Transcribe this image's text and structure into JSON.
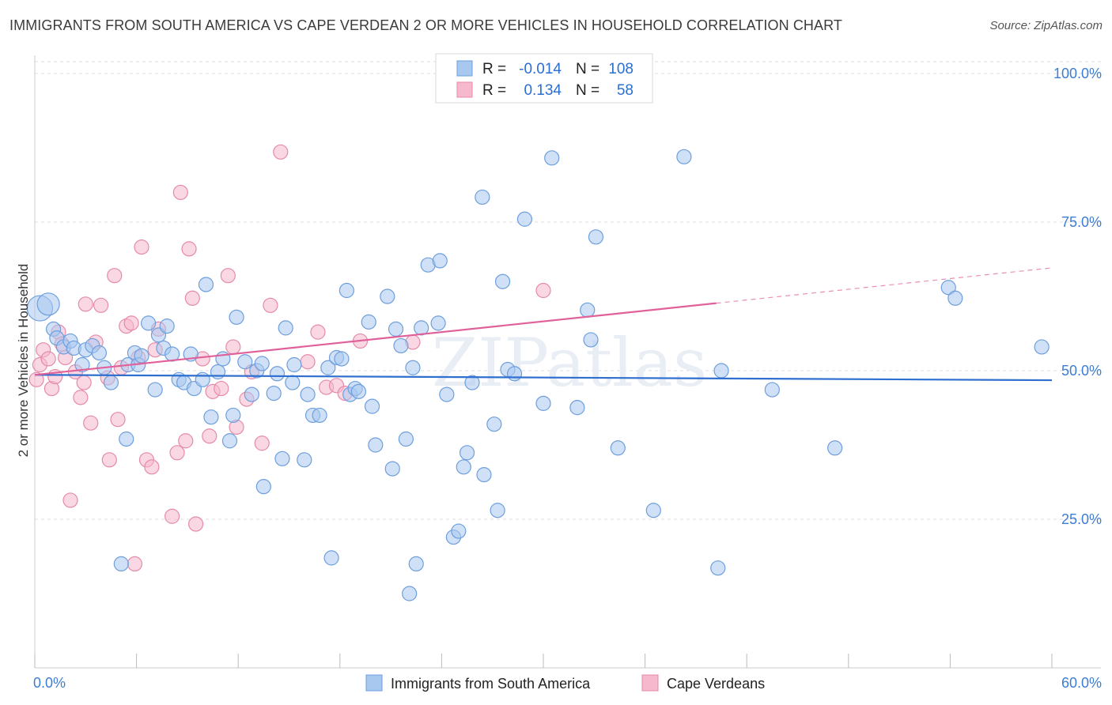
{
  "title": "IMMIGRANTS FROM SOUTH AMERICA VS CAPE VERDEAN 2 OR MORE VEHICLES IN HOUSEHOLD CORRELATION CHART",
  "source": "Source: ZipAtlas.com",
  "watermark": "ZIPatlas",
  "colors": {
    "blue_fill": "#a9c8f0",
    "blue_stroke": "#6d9fdd",
    "blue_line": "#2f6fcf",
    "pink_fill": "#f5b8cc",
    "pink_stroke": "#e68aa9",
    "pink_line": "#e0609a",
    "tick_text": "#3d7dd4",
    "grid": "#dddddd"
  },
  "legend_stats": [
    {
      "r_label": "R =",
      "r_value": "-0.014",
      "n_label": "N =",
      "n_value": "108"
    },
    {
      "r_label": "R =",
      "r_value": "0.134",
      "n_label": "N =",
      "n_value": "58"
    }
  ],
  "chart_data": {
    "type": "scatter",
    "xlabel": "",
    "ylabel": "2 or more Vehicles in Household",
    "xlim": [
      0,
      60
    ],
    "ylim": [
      0,
      102
    ],
    "x_tick_labels": [
      "0.0%",
      "60.0%"
    ],
    "y_ticks": [
      25,
      50,
      75,
      100
    ],
    "y_tick_labels": [
      "25.0%",
      "50.0%",
      "75.0%",
      "100.0%"
    ],
    "grid": true,
    "legend_position": "bottom",
    "series": [
      {
        "name": "Immigrants from South America",
        "color": "blue",
        "trend": {
          "x0": 0,
          "y0": 49.3,
          "x1": 60,
          "y1": 48.4,
          "dashed_from": null
        },
        "points": [
          [
            0.3,
            60.5
          ],
          [
            0.8,
            61.2
          ],
          [
            1.1,
            57.0
          ],
          [
            1.3,
            55.5
          ],
          [
            1.7,
            54.0
          ],
          [
            2.1,
            55.0
          ],
          [
            2.3,
            53.8
          ],
          [
            2.8,
            51.0
          ],
          [
            3.0,
            53.5
          ],
          [
            3.4,
            54.2
          ],
          [
            3.8,
            53.0
          ],
          [
            4.1,
            50.5
          ],
          [
            4.5,
            48.0
          ],
          [
            5.1,
            17.5
          ],
          [
            5.4,
            38.5
          ],
          [
            5.5,
            51.0
          ],
          [
            5.9,
            53.0
          ],
          [
            6.1,
            51.0
          ],
          [
            6.3,
            52.5
          ],
          [
            6.7,
            58.0
          ],
          [
            7.1,
            46.8
          ],
          [
            7.3,
            56.0
          ],
          [
            7.6,
            53.8
          ],
          [
            7.8,
            57.5
          ],
          [
            8.1,
            52.8
          ],
          [
            8.5,
            48.5
          ],
          [
            8.8,
            48.0
          ],
          [
            9.2,
            52.8
          ],
          [
            9.4,
            47.0
          ],
          [
            9.9,
            48.5
          ],
          [
            10.1,
            64.5
          ],
          [
            10.4,
            42.2
          ],
          [
            10.8,
            49.8
          ],
          [
            11.1,
            52.0
          ],
          [
            11.5,
            38.2
          ],
          [
            11.7,
            42.5
          ],
          [
            11.9,
            59.0
          ],
          [
            12.4,
            51.5
          ],
          [
            12.8,
            46.0
          ],
          [
            13.1,
            50.0
          ],
          [
            13.4,
            51.2
          ],
          [
            13.5,
            30.5
          ],
          [
            14.1,
            46.2
          ],
          [
            14.3,
            49.5
          ],
          [
            14.6,
            35.2
          ],
          [
            14.8,
            57.2
          ],
          [
            15.2,
            48.0
          ],
          [
            15.3,
            51.0
          ],
          [
            15.9,
            35.0
          ],
          [
            16.1,
            46.0
          ],
          [
            16.4,
            42.5
          ],
          [
            16.8,
            42.5
          ],
          [
            17.3,
            50.5
          ],
          [
            17.5,
            18.5
          ],
          [
            17.8,
            52.2
          ],
          [
            18.1,
            52.0
          ],
          [
            18.4,
            63.5
          ],
          [
            18.6,
            46.0
          ],
          [
            18.9,
            47.0
          ],
          [
            19.1,
            46.5
          ],
          [
            19.7,
            58.2
          ],
          [
            19.9,
            44.0
          ],
          [
            20.1,
            37.5
          ],
          [
            20.8,
            62.5
          ],
          [
            21.1,
            33.5
          ],
          [
            21.3,
            57.0
          ],
          [
            21.6,
            54.2
          ],
          [
            21.9,
            38.5
          ],
          [
            22.1,
            12.5
          ],
          [
            22.3,
            50.5
          ],
          [
            22.5,
            17.5
          ],
          [
            22.8,
            57.2
          ],
          [
            23.2,
            67.8
          ],
          [
            23.8,
            58.0
          ],
          [
            23.9,
            68.5
          ],
          [
            24.3,
            46.0
          ],
          [
            24.7,
            22.0
          ],
          [
            25.0,
            23.0
          ],
          [
            25.3,
            33.8
          ],
          [
            25.5,
            36.2
          ],
          [
            25.8,
            48.0
          ],
          [
            26.4,
            79.2
          ],
          [
            26.5,
            32.5
          ],
          [
            27.1,
            41.0
          ],
          [
            27.3,
            26.5
          ],
          [
            27.6,
            65.0
          ],
          [
            27.9,
            50.2
          ],
          [
            28.3,
            49.5
          ],
          [
            28.9,
            75.5
          ],
          [
            30.0,
            44.5
          ],
          [
            30.5,
            85.8
          ],
          [
            32.0,
            43.8
          ],
          [
            32.6,
            60.2
          ],
          [
            32.8,
            55.2
          ],
          [
            33.1,
            72.5
          ],
          [
            34.4,
            37.0
          ],
          [
            36.5,
            26.5
          ],
          [
            38.3,
            86.0
          ],
          [
            40.3,
            16.8
          ],
          [
            40.5,
            50.0
          ],
          [
            43.5,
            46.8
          ],
          [
            47.2,
            37.0
          ],
          [
            53.9,
            64.0
          ],
          [
            54.3,
            62.2
          ],
          [
            59.4,
            54.0
          ]
        ]
      },
      {
        "name": "Cape Verdeans",
        "color": "pink",
        "trend": {
          "x0": 0,
          "y0": 49.3,
          "x1": 60,
          "y1": 67.3,
          "dashed_from": 40.2
        },
        "points": [
          [
            0.1,
            48.5
          ],
          [
            0.3,
            51.0
          ],
          [
            0.5,
            53.5
          ],
          [
            0.8,
            52.0
          ],
          [
            1.0,
            47.0
          ],
          [
            1.2,
            49.0
          ],
          [
            1.4,
            56.5
          ],
          [
            1.6,
            54.5
          ],
          [
            1.8,
            52.2
          ],
          [
            2.1,
            28.2
          ],
          [
            2.4,
            49.8
          ],
          [
            2.7,
            45.5
          ],
          [
            2.9,
            48.0
          ],
          [
            3.0,
            61.2
          ],
          [
            3.3,
            41.2
          ],
          [
            3.6,
            54.8
          ],
          [
            3.9,
            61.0
          ],
          [
            4.3,
            48.8
          ],
          [
            4.4,
            35.0
          ],
          [
            4.7,
            66.0
          ],
          [
            4.9,
            41.8
          ],
          [
            5.1,
            50.5
          ],
          [
            5.4,
            57.5
          ],
          [
            5.7,
            58.0
          ],
          [
            5.9,
            17.5
          ],
          [
            6.1,
            52.2
          ],
          [
            6.3,
            70.8
          ],
          [
            6.6,
            35.0
          ],
          [
            6.9,
            33.8
          ],
          [
            7.1,
            53.5
          ],
          [
            7.3,
            57.0
          ],
          [
            8.1,
            25.5
          ],
          [
            8.4,
            36.2
          ],
          [
            8.6,
            80.0
          ],
          [
            8.9,
            38.2
          ],
          [
            9.1,
            70.5
          ],
          [
            9.3,
            62.2
          ],
          [
            9.5,
            24.2
          ],
          [
            9.9,
            52.0
          ],
          [
            10.3,
            39.0
          ],
          [
            10.5,
            46.5
          ],
          [
            11.0,
            47.0
          ],
          [
            11.4,
            66.0
          ],
          [
            11.7,
            54.0
          ],
          [
            11.9,
            40.5
          ],
          [
            12.5,
            45.2
          ],
          [
            12.8,
            49.8
          ],
          [
            13.4,
            37.8
          ],
          [
            13.9,
            61.0
          ],
          [
            14.5,
            86.8
          ],
          [
            16.1,
            51.5
          ],
          [
            16.7,
            56.5
          ],
          [
            17.2,
            47.2
          ],
          [
            17.8,
            47.5
          ],
          [
            18.3,
            46.2
          ],
          [
            19.2,
            55.0
          ],
          [
            22.3,
            54.8
          ],
          [
            30.0,
            63.5
          ]
        ]
      }
    ]
  },
  "legend": [
    {
      "label": "Immigrants from South America",
      "color": "blue"
    },
    {
      "label": "Cape Verdeans",
      "color": "pink"
    }
  ]
}
